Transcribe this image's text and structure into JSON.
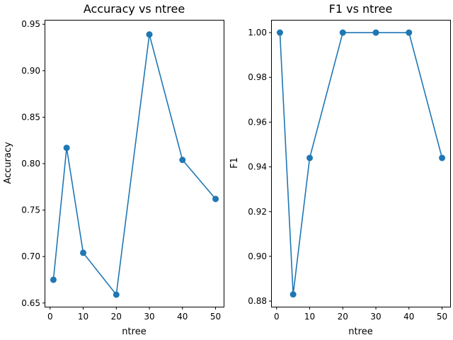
{
  "chart_data": [
    {
      "type": "line",
      "title": "Accuracy vs ntree",
      "xlabel": "ntree",
      "ylabel": "Accuracy",
      "x": [
        1,
        5,
        10,
        20,
        30,
        40,
        50
      ],
      "series": [
        {
          "values": [
            0.675,
            0.817,
            0.704,
            0.659,
            0.939,
            0.804,
            0.762
          ]
        }
      ],
      "xlim": [
        -1.45,
        52.45
      ],
      "ylim": [
        0.646,
        0.954
      ],
      "xticks": [
        "0",
        "10",
        "20",
        "30",
        "40",
        "50"
      ],
      "yticks": [
        "0.65",
        "0.70",
        "0.75",
        "0.80",
        "0.85",
        "0.90",
        "0.95"
      ],
      "grid": false,
      "marker": "circle"
    },
    {
      "type": "line",
      "title": "F1 vs ntree",
      "xlabel": "ntree",
      "ylabel": "F1",
      "x": [
        1,
        5,
        10,
        20,
        30,
        40,
        50
      ],
      "series": [
        {
          "values": [
            1.0,
            0.883,
            0.944,
            1.0,
            1.0,
            1.0,
            0.944
          ]
        }
      ],
      "xlim": [
        -1.45,
        52.45
      ],
      "ylim": [
        0.8775,
        1.0054
      ],
      "xticks": [
        "0",
        "10",
        "20",
        "30",
        "40",
        "50"
      ],
      "yticks": [
        "0.88",
        "0.90",
        "0.92",
        "0.94",
        "0.96",
        "0.98",
        "1.00"
      ],
      "grid": false,
      "marker": "circle"
    }
  ],
  "style": {
    "line_color": "#1f77b4",
    "axis_color": "#000000",
    "background": "#ffffff"
  }
}
